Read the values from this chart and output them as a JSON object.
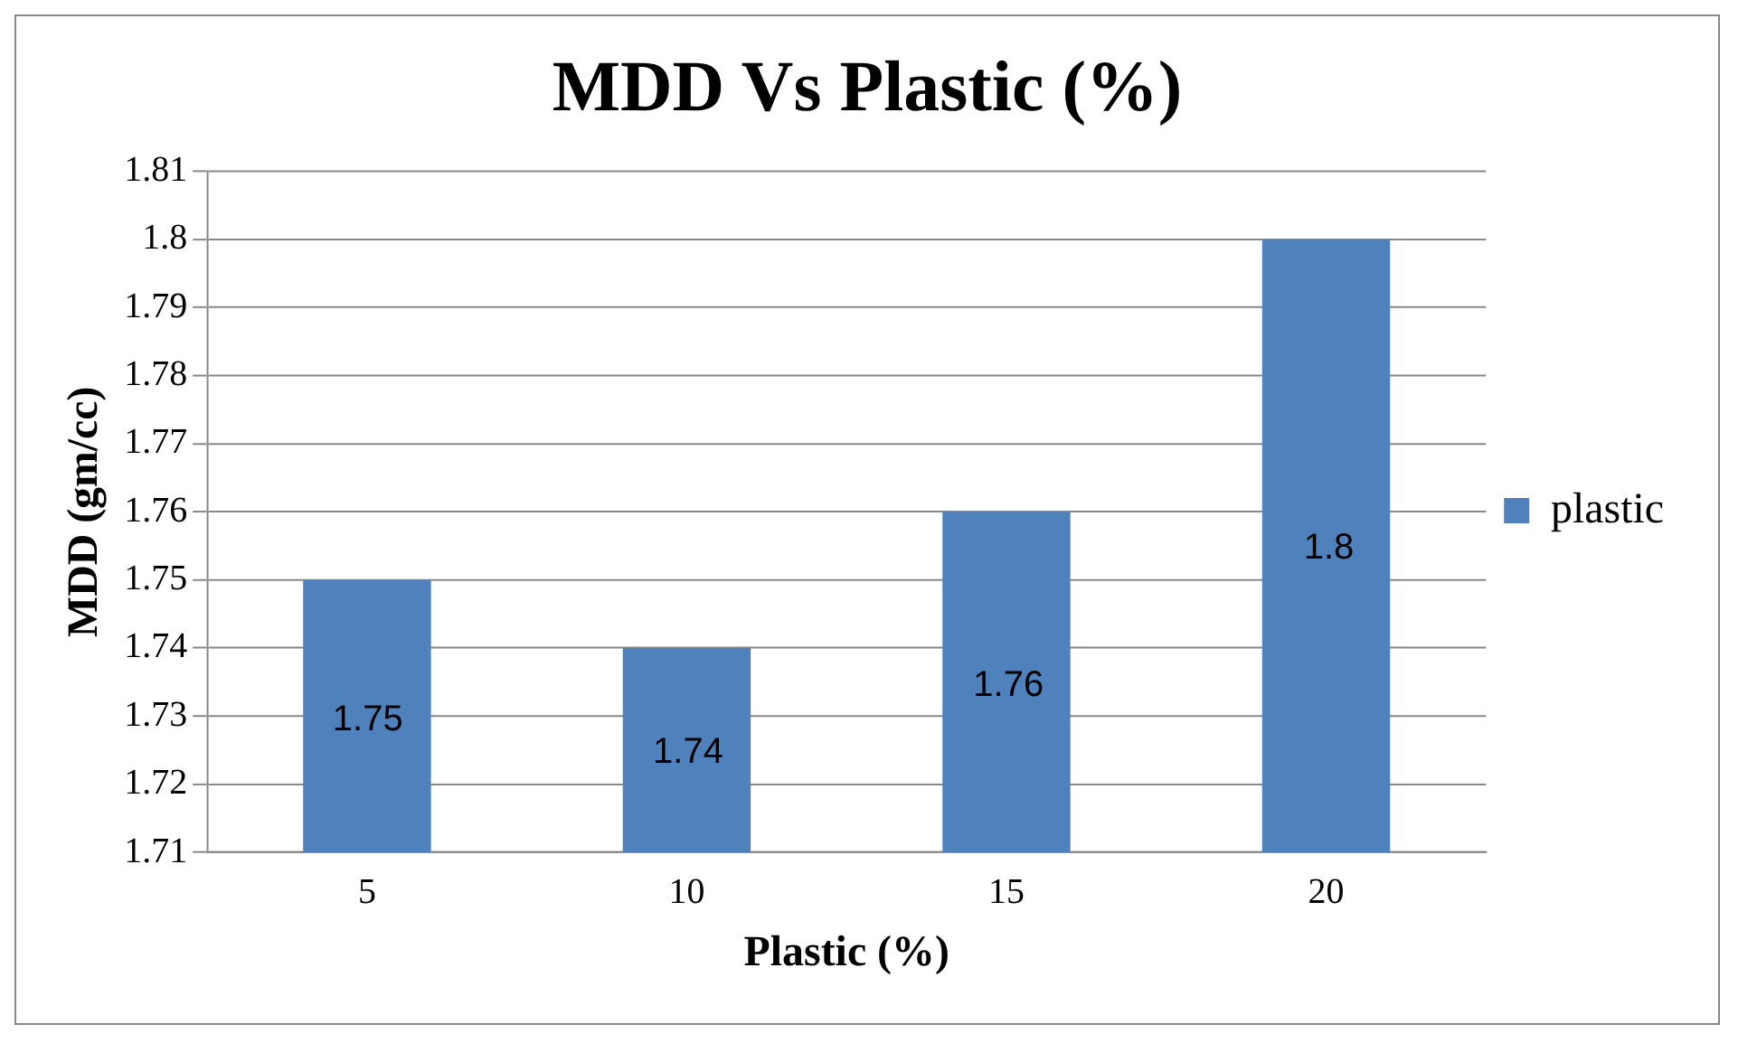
{
  "chart_data": {
    "type": "bar",
    "title": "MDD Vs Plastic (%)",
    "xlabel": "Plastic (%)",
    "ylabel": "MDD (gm/cc)",
    "categories": [
      "5",
      "10",
      "15",
      "20"
    ],
    "series": [
      {
        "name": "plastic",
        "color": "#4f81bd",
        "values": [
          1.75,
          1.74,
          1.76,
          1.8
        ]
      }
    ],
    "ylim": [
      1.71,
      1.81
    ],
    "yticks": [
      1.71,
      1.72,
      1.73,
      1.74,
      1.75,
      1.76,
      1.77,
      1.78,
      1.79,
      1.8,
      1.81
    ],
    "grid": "y",
    "legend": "right",
    "data_labels": true
  }
}
